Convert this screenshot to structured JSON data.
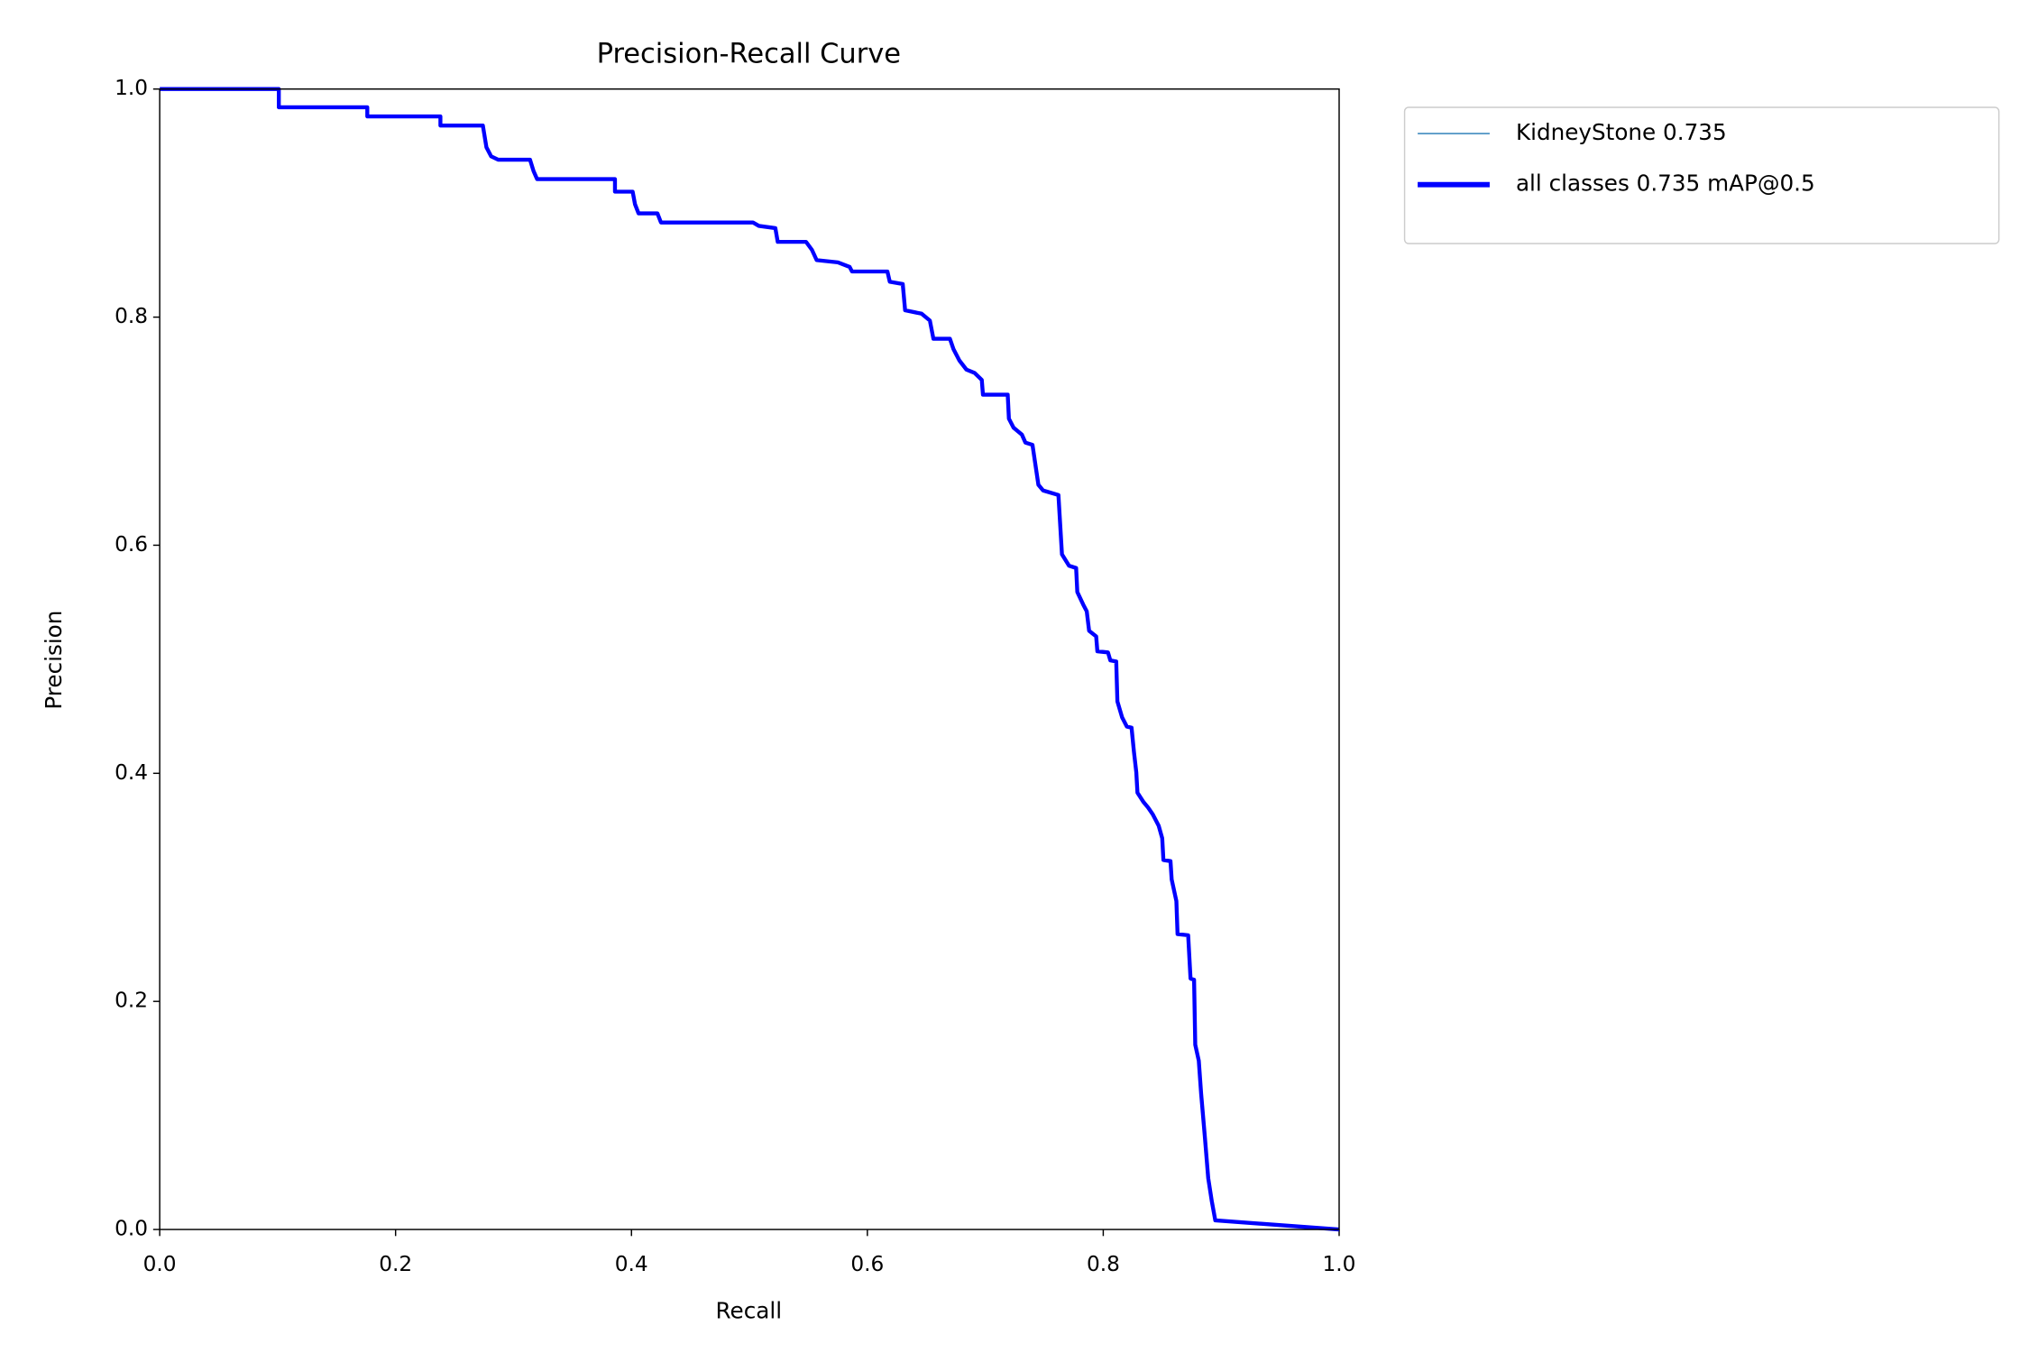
{
  "chart_data": {
    "type": "line",
    "title": "Precision-Recall Curve",
    "x_label": "Recall",
    "y_label": "Precision",
    "x": [
      0,
      0.101,
      0.101,
      0.176,
      0.176,
      0.238,
      0.238,
      0.274,
      0.277,
      0.281,
      0.287,
      0.314,
      0.317,
      0.32,
      0.386,
      0.386,
      0.401,
      0.403,
      0.406,
      0.422,
      0.425,
      0.503,
      0.508,
      0.522,
      0.524,
      0.548,
      0.553,
      0.557,
      0.575,
      0.585,
      0.587,
      0.617,
      0.619,
      0.63,
      0.632,
      0.646,
      0.653,
      0.656,
      0.67,
      0.673,
      0.678,
      0.684,
      0.691,
      0.697,
      0.698,
      0.719,
      0.72,
      0.724,
      0.731,
      0.734,
      0.74,
      0.742,
      0.745,
      0.749,
      0.762,
      0.765,
      0.771,
      0.777,
      0.778,
      0.783,
      0.786,
      0.788,
      0.794,
      0.795,
      0.804,
      0.806,
      0.811,
      0.812,
      0.816,
      0.82,
      0.824,
      0.826,
      0.828,
      0.829,
      0.834,
      0.838,
      0.842,
      0.847,
      0.85,
      0.851,
      0.857,
      0.858,
      0.862,
      0.863,
      0.872,
      0.874,
      0.877,
      0.878,
      0.881,
      0.883,
      0.886,
      0.889,
      0.892,
      0.895,
      1
    ],
    "series": [
      {
        "name": "KidneyStone 0.735",
        "color": "#1f77b4",
        "width": 1,
        "values": [
          1,
          1,
          0.984,
          0.984,
          0.976,
          0.976,
          0.968,
          0.968,
          0.949,
          0.941,
          0.938,
          0.938,
          0.928,
          0.921,
          0.921,
          0.91,
          0.91,
          0.899,
          0.891,
          0.891,
          0.883,
          0.883,
          0.88,
          0.878,
          0.866,
          0.866,
          0.859,
          0.85,
          0.848,
          0.844,
          0.84,
          0.84,
          0.831,
          0.829,
          0.806,
          0.803,
          0.797,
          0.781,
          0.781,
          0.772,
          0.762,
          0.754,
          0.751,
          0.745,
          0.732,
          0.732,
          0.711,
          0.703,
          0.697,
          0.69,
          0.688,
          0.674,
          0.653,
          0.648,
          0.644,
          0.592,
          0.582,
          0.58,
          0.559,
          0.548,
          0.542,
          0.525,
          0.52,
          0.507,
          0.506,
          0.499,
          0.498,
          0.463,
          0.449,
          0.441,
          0.44,
          0.419,
          0.401,
          0.383,
          0.375,
          0.37,
          0.364,
          0.354,
          0.343,
          0.324,
          0.323,
          0.307,
          0.288,
          0.259,
          0.258,
          0.22,
          0.219,
          0.162,
          0.148,
          0.119,
          0.083,
          0.045,
          0.025,
          0.008,
          0
        ]
      },
      {
        "name": "all classes 0.735 mAP@0.5",
        "color": "#0000ff",
        "width": 3,
        "values": [
          1,
          1,
          0.984,
          0.984,
          0.976,
          0.976,
          0.968,
          0.968,
          0.949,
          0.941,
          0.938,
          0.938,
          0.928,
          0.921,
          0.921,
          0.91,
          0.91,
          0.899,
          0.891,
          0.891,
          0.883,
          0.883,
          0.88,
          0.878,
          0.866,
          0.866,
          0.859,
          0.85,
          0.848,
          0.844,
          0.84,
          0.84,
          0.831,
          0.829,
          0.806,
          0.803,
          0.797,
          0.781,
          0.781,
          0.772,
          0.762,
          0.754,
          0.751,
          0.745,
          0.732,
          0.732,
          0.711,
          0.703,
          0.697,
          0.69,
          0.688,
          0.674,
          0.653,
          0.648,
          0.644,
          0.592,
          0.582,
          0.58,
          0.559,
          0.548,
          0.542,
          0.525,
          0.52,
          0.507,
          0.506,
          0.499,
          0.498,
          0.463,
          0.449,
          0.441,
          0.44,
          0.419,
          0.401,
          0.383,
          0.375,
          0.37,
          0.364,
          0.354,
          0.343,
          0.324,
          0.323,
          0.307,
          0.288,
          0.259,
          0.258,
          0.22,
          0.219,
          0.162,
          0.148,
          0.119,
          0.083,
          0.045,
          0.025,
          0.008,
          0
        ]
      }
    ],
    "xlim": [
      0,
      1
    ],
    "ylim": [
      0,
      1
    ],
    "xticks": [
      {
        "value": 0,
        "label": "0.0"
      },
      0.2,
      0.4,
      0.6,
      0.8,
      {
        "value": 1,
        "label": "1.0"
      }
    ],
    "yticks": [
      {
        "value": 0,
        "label": "0.0"
      },
      0.2,
      0.4,
      0.6,
      0.8,
      {
        "value": 1,
        "label": "1.0"
      }
    ],
    "grid": false,
    "legend": "outside-upper-right"
  }
}
